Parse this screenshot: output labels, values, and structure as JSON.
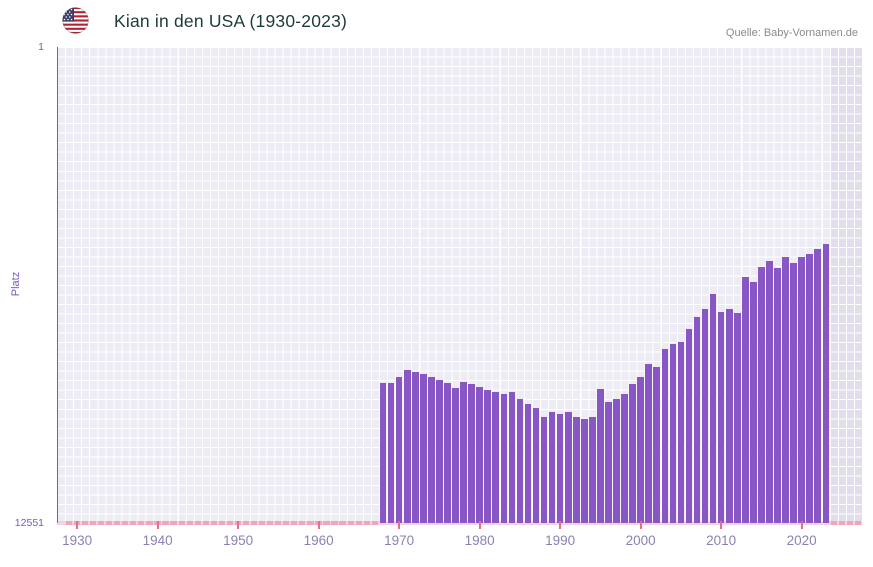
{
  "header": {
    "title": "Kian in den USA (1930-2023)",
    "source": "Quelle: Baby-Vornamen.de",
    "flag_icon": "us-flag-icon"
  },
  "chart_data": {
    "type": "bar",
    "title": "Kian in den USA (1930-2023)",
    "xlabel": "",
    "ylabel": "Platz",
    "y_axis": {
      "top_label": "1",
      "bottom_label": "12551",
      "min": 1,
      "max": 12551,
      "scale": "log",
      "inverted": true
    },
    "x_range": [
      1928,
      2028
    ],
    "x_ticks": [
      "1930",
      "1940",
      "1950",
      "1960",
      "1970",
      "1980",
      "1990",
      "2000",
      "2010",
      "2020"
    ],
    "grid": true,
    "legend": false,
    "years": [
      1968,
      1969,
      1970,
      1971,
      1972,
      1973,
      1974,
      1975,
      1976,
      1977,
      1978,
      1979,
      1980,
      1981,
      1982,
      1983,
      1984,
      1985,
      1986,
      1987,
      1988,
      1989,
      1990,
      1991,
      1992,
      1993,
      1994,
      1995,
      1996,
      1997,
      1998,
      1999,
      2000,
      2001,
      2002,
      2003,
      2004,
      2005,
      2006,
      2007,
      2008,
      2009,
      2010,
      2011,
      2012,
      2013,
      2014,
      2015,
      2016,
      2017,
      2018,
      2019,
      2020,
      2021,
      2022,
      2023
    ],
    "ranks": [
      783,
      783,
      695,
      604,
      630,
      655,
      695,
      735,
      783,
      863,
      770,
      797,
      846,
      899,
      938,
      978,
      938,
      1074,
      1186,
      1285,
      1535,
      1390,
      1450,
      1390,
      1535,
      1597,
      1535,
      880,
      1140,
      1074,
      978,
      797,
      695,
      537,
      570,
      399,
      361,
      345,
      268,
      211,
      180,
      134,
      190,
      180,
      195,
      96,
      106,
      78,
      70,
      80,
      64,
      72,
      64,
      61,
      55,
      50
    ],
    "no_data_year_ranges": [
      [
        1929,
        1967
      ],
      [
        2024,
        2027
      ]
    ],
    "highlight_band": {
      "from_year": 2024,
      "to_year": 2028
    },
    "colors": {
      "bar": "#8956c6",
      "axis": "#7e57c2",
      "plot_bg": "#edebf4",
      "band_bg": "#e2deed",
      "grid_line": "#ffffff",
      "baseline": "#f5d3dd",
      "no_data_mark": "#efa6ba",
      "decade_tick": "#e0708f",
      "title": "#1e3a3a",
      "source": "#8a8a8a",
      "x_label": "#8e80b4"
    }
  }
}
